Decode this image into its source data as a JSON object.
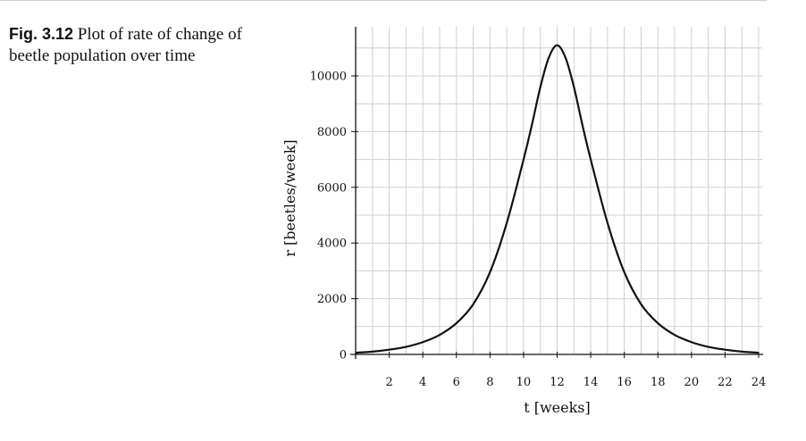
{
  "caption": {
    "fig_label": "Fig. 3.12",
    "text": "Plot of rate of change of beetle population over time"
  },
  "chart_data": {
    "type": "line",
    "xlabel": "t [weeks]",
    "ylabel": "r [beetles/week]",
    "xlim": [
      0,
      24
    ],
    "ylim": [
      0,
      11500
    ],
    "x_ticks": [
      2,
      4,
      6,
      8,
      10,
      12,
      14,
      16,
      18,
      20,
      22,
      24
    ],
    "y_ticks": [
      0,
      2000,
      4000,
      6000,
      8000,
      10000
    ],
    "grid": true,
    "series": [
      {
        "x": [
          0,
          1,
          2,
          3,
          4,
          5,
          6,
          7,
          8,
          9,
          10,
          10.5,
          11,
          11.5,
          12,
          12.5,
          13,
          13.5,
          14,
          15,
          16,
          17,
          18,
          19,
          20,
          21,
          22,
          23,
          24
        ],
        "y": [
          60,
          100,
          170,
          270,
          440,
          700,
          1120,
          1800,
          2950,
          4720,
          7000,
          8250,
          9600,
          10650,
          11100,
          10650,
          9600,
          8250,
          7000,
          4720,
          2950,
          1800,
          1120,
          700,
          440,
          270,
          170,
          100,
          60
        ]
      }
    ]
  }
}
